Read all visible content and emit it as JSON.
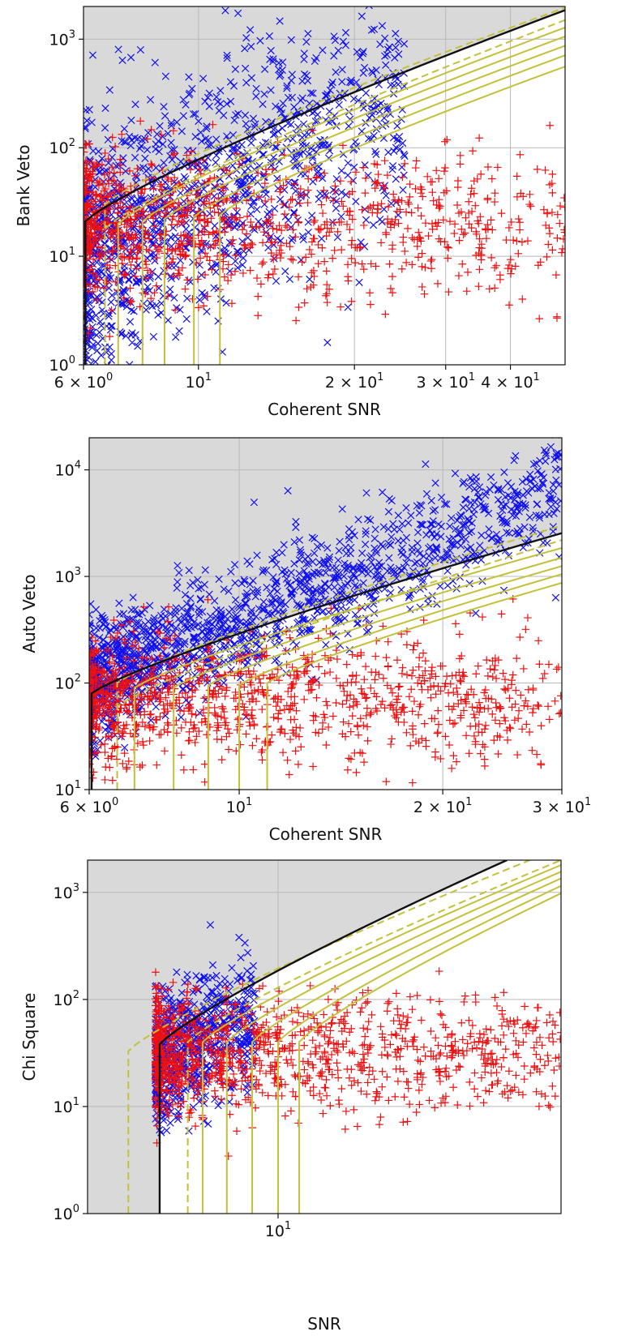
{
  "colors": {
    "background_region": "#d9d9d9",
    "grid": "#b9b9b9",
    "signal_marker": "#1010ee",
    "noise_marker": "#ee1010",
    "threshold_line": "#111111",
    "contour_line": "#c3c03a"
  },
  "chart_data": [
    {
      "type": "scatter",
      "panel": "bank-veto",
      "xlabel": "Coherent SNR",
      "ylabel": "Bank Veto",
      "xscale": "log",
      "yscale": "log",
      "xlim": [
        6,
        51
      ],
      "ylim": [
        1,
        2000
      ],
      "grid": true,
      "xticks": [
        {
          "value": 6,
          "mant": "6 × 10",
          "exp": "0"
        },
        {
          "value": 10,
          "mant": "10",
          "exp": "1"
        },
        {
          "value": 20,
          "mant": "2 × 10",
          "exp": "1"
        },
        {
          "value": 30,
          "mant": "3 × 10",
          "exp": "1"
        },
        {
          "value": 40,
          "mant": "4 × 10",
          "exp": "1"
        }
      ],
      "yticks": [
        {
          "value": 1,
          "mant": "10",
          "exp": "0"
        },
        {
          "value": 10,
          "mant": "10",
          "exp": "1"
        },
        {
          "value": 100,
          "mant": "10",
          "exp": "2"
        },
        {
          "value": 1000,
          "mant": "10",
          "exp": "3"
        }
      ],
      "threshold": {
        "x0": 6.05,
        "y0": 21,
        "x_end": 51,
        "y_end": 1850
      },
      "dashed_contours": [
        {
          "x0": 6.6,
          "y0": 30,
          "x_end": 51,
          "y_end": 1950
        },
        {
          "x0": 6.6,
          "y0": 18,
          "x_end": 51,
          "y_end": 1500
        }
      ],
      "solid_contours": [
        {
          "x0": 7.0,
          "y0": 20,
          "x_end": 51,
          "y_end": 1280
        },
        {
          "x0": 7.8,
          "y0": 21,
          "x_end": 51,
          "y_end": 1060
        },
        {
          "x0": 8.6,
          "y0": 22,
          "x_end": 51,
          "y_end": 870
        },
        {
          "x0": 9.8,
          "y0": 23,
          "x_end": 51,
          "y_end": 710
        },
        {
          "x0": 11.0,
          "y0": 24,
          "x_end": 51,
          "y_end": 560
        }
      ],
      "signal_cloud": {
        "count": 1300,
        "x_range": [
          6,
          25
        ],
        "y_base": 10,
        "y_slope": 2.4,
        "y_spread": 0.55
      },
      "noise_cloud": {
        "count": 1100,
        "x_range": [
          6,
          51
        ],
        "y_center": 20,
        "y_spread": 0.35
      }
    },
    {
      "type": "scatter",
      "panel": "auto-veto",
      "xlabel": "Coherent SNR",
      "ylabel": "Auto Veto",
      "xscale": "log",
      "yscale": "log",
      "xlim": [
        6,
        30
      ],
      "ylim": [
        10,
        20000
      ],
      "grid": true,
      "xticks": [
        {
          "value": 6,
          "mant": "6 × 10",
          "exp": "0"
        },
        {
          "value": 10,
          "mant": "10",
          "exp": "1"
        },
        {
          "value": 20,
          "mant": "2 × 10",
          "exp": "1"
        },
        {
          "value": 30,
          "mant": "3 × 10",
          "exp": "1"
        }
      ],
      "yticks": [
        {
          "value": 10,
          "mant": "10",
          "exp": "1"
        },
        {
          "value": 100,
          "mant": "10",
          "exp": "2"
        },
        {
          "value": 1000,
          "mant": "10",
          "exp": "3"
        },
        {
          "value": 10000,
          "mant": "10",
          "exp": "4"
        }
      ],
      "threshold": {
        "x0": 6.05,
        "y0": 80,
        "x_end": 30,
        "y_end": 2550
      },
      "dashed_contours": [
        {
          "x0": 6.6,
          "y0": 100,
          "x_end": 30,
          "y_end": 3000
        },
        {
          "x0": 6.6,
          "y0": 60,
          "x_end": 30,
          "y_end": 2200
        }
      ],
      "solid_contours": [
        {
          "x0": 7.0,
          "y0": 90,
          "x_end": 30,
          "y_end": 1850
        },
        {
          "x0": 8.0,
          "y0": 90,
          "x_end": 30,
          "y_end": 1500
        },
        {
          "x0": 9.0,
          "y0": 95,
          "x_end": 30,
          "y_end": 1250
        },
        {
          "x0": 10.0,
          "y0": 95,
          "x_end": 30,
          "y_end": 1050
        },
        {
          "x0": 11.0,
          "y0": 100,
          "x_end": 30,
          "y_end": 870
        }
      ],
      "signal_cloud": {
        "count": 1500,
        "x_range": [
          6,
          30
        ],
        "y_base": 100,
        "y_slope": 2.6,
        "y_spread": 0.28
      },
      "noise_cloud": {
        "count": 1100,
        "x_range": [
          6,
          30
        ],
        "y_center": 75,
        "y_spread": 0.3
      }
    },
    {
      "type": "scatter",
      "panel": "chi-square",
      "xlabel": "SNR",
      "ylabel": "Chi Square",
      "xscale": "log",
      "yscale": "log",
      "xlim": [
        5,
        28
      ],
      "ylim": [
        1,
        2000
      ],
      "grid": true,
      "xticks": [
        {
          "value": 10,
          "mant": "10",
          "exp": "1"
        }
      ],
      "yticks": [
        {
          "value": 1,
          "mant": "10",
          "exp": "0"
        },
        {
          "value": 10,
          "mant": "10",
          "exp": "1"
        },
        {
          "value": 100,
          "mant": "10",
          "exp": "2"
        },
        {
          "value": 1000,
          "mant": "10",
          "exp": "3"
        }
      ],
      "threshold": {
        "x0": 6.5,
        "y0": 38,
        "x_end": 23,
        "y_end": 2000
      },
      "dashed_contours": [
        {
          "x0": 5.8,
          "y0": 33,
          "x_end": 25,
          "y_end": 2000
        },
        {
          "x0": 7.2,
          "y0": 40,
          "x_end": 28,
          "y_end": 2000
        }
      ],
      "solid_contours": [
        {
          "x0": 7.6,
          "y0": 40,
          "x_end": 28,
          "y_end": 1800
        },
        {
          "x0": 8.3,
          "y0": 40,
          "x_end": 28,
          "y_end": 1560
        },
        {
          "x0": 9.1,
          "y0": 40,
          "x_end": 28,
          "y_end": 1350
        },
        {
          "x0": 10.0,
          "y0": 40,
          "x_end": 28,
          "y_end": 1150
        },
        {
          "x0": 10.8,
          "y0": 40,
          "x_end": 28,
          "y_end": 980
        }
      ],
      "signal_cloud": {
        "count": 700,
        "x_range": [
          6.4,
          9.2
        ],
        "y_base": 25,
        "y_slope": 3.0,
        "y_spread": 0.3
      },
      "noise_cloud": {
        "count": 1100,
        "x_range": [
          6.4,
          28
        ],
        "y_center": 30,
        "y_spread": 0.28
      }
    }
  ]
}
